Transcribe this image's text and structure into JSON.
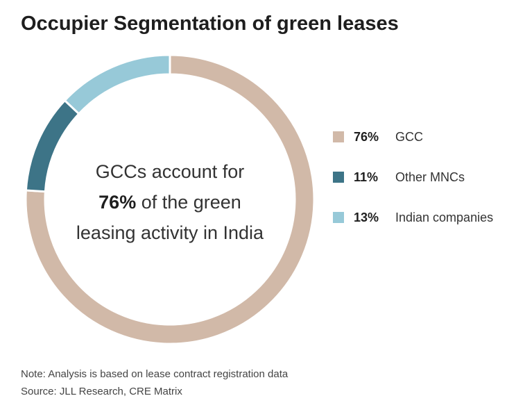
{
  "chart_data": {
    "type": "pie",
    "title": "Occupier Segmentation of green leases",
    "categories": [
      "GCC",
      "Other MNCs",
      "Indian companies"
    ],
    "values": [
      76,
      11,
      13
    ],
    "value_labels": [
      "76%",
      "11%",
      "13%"
    ],
    "colors": [
      "#d1b9a8",
      "#3d7487",
      "#97c9d8"
    ],
    "legend_position": "right",
    "center_annotation": {
      "line1": "GCCs account for",
      "highlight": "76%",
      "line2_rest": " of the green",
      "line3": "leasing activity in India"
    }
  },
  "footer": {
    "note": "Note: Analysis is based on lease contract registration data",
    "source": "Source: JLL Research, CRE Matrix"
  }
}
